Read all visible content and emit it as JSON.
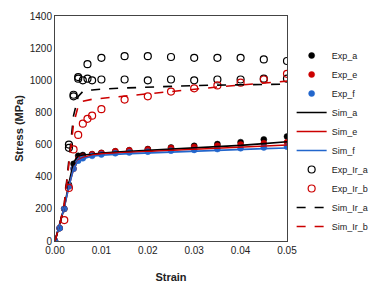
{
  "chart_data": {
    "type": "scatter",
    "xlabel": "Strain",
    "ylabel": "Stress (MPa)",
    "xlim": [
      0,
      0.05
    ],
    "ylim": [
      0,
      1400
    ],
    "xticks": [
      {
        "value": 0,
        "label": "0.00"
      },
      0.01,
      0.02,
      0.03,
      0.04,
      0.05
    ],
    "yticks": [
      0,
      200,
      400,
      600,
      800,
      1000,
      1200,
      1400
    ],
    "grid": false,
    "legend": "lower right",
    "series": [
      {
        "name": "Exp_a",
        "type": "scatter",
        "marker": "circle",
        "color": "#000000",
        "x": [
          0.0,
          0.001,
          0.002,
          0.003,
          0.004,
          0.005,
          0.006,
          0.008,
          0.01,
          0.013,
          0.016,
          0.02,
          0.025,
          0.03,
          0.035,
          0.04,
          0.045,
          0.05
        ],
        "values": [
          0,
          80,
          200,
          350,
          480,
          530,
          535,
          540,
          548,
          558,
          565,
          572,
          582,
          592,
          603,
          615,
          632,
          650
        ]
      },
      {
        "name": "Exp_e",
        "type": "scatter",
        "marker": "circle",
        "color": "#cc0000",
        "x": [
          0.0,
          0.001,
          0.002,
          0.003,
          0.004,
          0.005,
          0.006,
          0.008,
          0.01,
          0.013,
          0.016,
          0.02,
          0.025,
          0.03,
          0.035,
          0.04,
          0.045,
          0.05
        ],
        "values": [
          0,
          80,
          200,
          340,
          450,
          510,
          525,
          540,
          548,
          558,
          564,
          570,
          578,
          585,
          593,
          600,
          608,
          615
        ]
      },
      {
        "name": "Exp_f",
        "type": "scatter",
        "marker": "circle",
        "color": "#2266cc",
        "x": [
          0.0,
          0.001,
          0.002,
          0.003,
          0.004,
          0.005,
          0.006,
          0.008,
          0.01,
          0.013,
          0.016,
          0.02,
          0.025,
          0.03,
          0.035,
          0.04,
          0.045,
          0.05
        ],
        "values": [
          0,
          80,
          200,
          340,
          450,
          500,
          515,
          530,
          538,
          546,
          551,
          556,
          562,
          567,
          572,
          577,
          582,
          587
        ]
      },
      {
        "name": "Sim_a",
        "type": "line",
        "line_style": "solid",
        "color": "#000000",
        "x": [
          0.0,
          0.001,
          0.002,
          0.003,
          0.004,
          0.005,
          0.006,
          0.008,
          0.01,
          0.015,
          0.02,
          0.025,
          0.03,
          0.035,
          0.04,
          0.045,
          0.05
        ],
        "values": [
          0,
          100,
          210,
          360,
          490,
          530,
          535,
          540,
          547,
          556,
          563,
          570,
          578,
          586,
          595,
          606,
          618
        ]
      },
      {
        "name": "Sim_e",
        "type": "line",
        "line_style": "solid",
        "color": "#cc0000",
        "x": [
          0.0,
          0.001,
          0.002,
          0.003,
          0.004,
          0.005,
          0.006,
          0.008,
          0.01,
          0.015,
          0.02,
          0.025,
          0.03,
          0.035,
          0.04,
          0.045,
          0.05
        ],
        "values": [
          0,
          100,
          210,
          340,
          450,
          505,
          520,
          535,
          542,
          551,
          558,
          565,
          572,
          579,
          585,
          591,
          597
        ]
      },
      {
        "name": "Sim_f",
        "type": "line",
        "line_style": "solid",
        "color": "#2266cc",
        "x": [
          0.0,
          0.001,
          0.002,
          0.003,
          0.004,
          0.005,
          0.006,
          0.008,
          0.01,
          0.015,
          0.02,
          0.025,
          0.03,
          0.035,
          0.04,
          0.045,
          0.05
        ],
        "values": [
          0,
          100,
          210,
          340,
          450,
          498,
          512,
          527,
          534,
          542,
          548,
          554,
          560,
          565,
          570,
          575,
          579
        ]
      },
      {
        "name": "Exp_Ir_a",
        "type": "scatter",
        "marker": "open-circle",
        "color": "#000000",
        "x": [
          0.003,
          0.004,
          0.005,
          0.006,
          0.007,
          0.008,
          0.01,
          0.015,
          0.02,
          0.025,
          0.03,
          0.035,
          0.04,
          0.045,
          0.05
        ],
        "values": [
          580,
          900,
          1010,
          1000,
          1010,
          1000,
          1005,
          1005,
          1000,
          1005,
          1000,
          1005,
          1005,
          1010,
          1010
        ]
      },
      {
        "type": "scatter",
        "marker": "open-circle",
        "color": "#000000",
        "x": [
          0.003,
          0.004,
          0.005,
          0.007,
          0.01,
          0.015,
          0.02,
          0.025,
          0.03,
          0.035,
          0.04,
          0.045,
          0.05
        ],
        "values": [
          600,
          910,
          1020,
          1100,
          1140,
          1150,
          1150,
          1145,
          1140,
          1140,
          1140,
          1130,
          1120
        ]
      },
      {
        "name": "Exp_Ir_b",
        "type": "scatter",
        "marker": "open-circle",
        "color": "#cc0000",
        "x": [
          0.002,
          0.003,
          0.004,
          0.005,
          0.006,
          0.007,
          0.008,
          0.01,
          0.015,
          0.02,
          0.025,
          0.03,
          0.035,
          0.04,
          0.045,
          0.05
        ],
        "values": [
          130,
          330,
          570,
          660,
          730,
          760,
          780,
          820,
          880,
          900,
          930,
          950,
          968,
          985,
          1005,
          1040
        ]
      },
      {
        "name": "Sim_Ir_a",
        "type": "line",
        "line_style": "dashed",
        "color": "#000000",
        "x": [
          0.0,
          0.001,
          0.002,
          0.003,
          0.004,
          0.005,
          0.006,
          0.008,
          0.01,
          0.015,
          0.02,
          0.025,
          0.03,
          0.035,
          0.04,
          0.045,
          0.05
        ],
        "values": [
          0,
          100,
          230,
          500,
          780,
          900,
          930,
          940,
          945,
          952,
          958,
          963,
          967,
          970,
          972,
          974,
          976
        ]
      },
      {
        "name": "Sim_Ir_b",
        "type": "line",
        "line_style": "dashed",
        "color": "#cc0000",
        "x": [
          0.0,
          0.001,
          0.002,
          0.003,
          0.004,
          0.005,
          0.006,
          0.008,
          0.01,
          0.015,
          0.02,
          0.025,
          0.03,
          0.035,
          0.04,
          0.045,
          0.05
        ],
        "values": [
          0,
          100,
          230,
          490,
          730,
          840,
          870,
          882,
          888,
          900,
          915,
          930,
          945,
          958,
          970,
          982,
          995
        ]
      }
    ]
  }
}
